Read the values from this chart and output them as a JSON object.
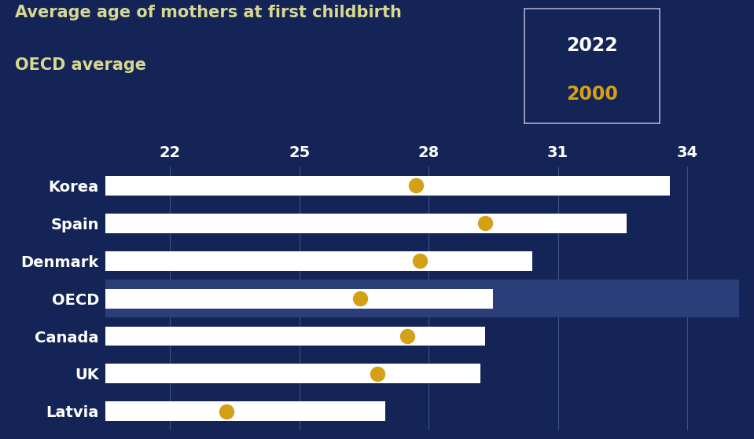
{
  "title_line1": "Average age of mothers at first childbirth",
  "title_line2": "OECD average",
  "bg_color": "#152457",
  "bar_color": "#ffffff",
  "dot_color": "#d4a017",
  "text_color": "#ffffff",
  "title_color": "#d8d890",
  "oecd_highlight_color": "#2a3f7a",
  "categories": [
    "Korea",
    "Spain",
    "Denmark",
    "OECD",
    "Canada",
    "UK",
    "Latvia"
  ],
  "values_2022": [
    33.6,
    32.6,
    30.4,
    29.5,
    29.3,
    29.2,
    27.0
  ],
  "values_2000": [
    27.7,
    29.3,
    27.8,
    26.4,
    27.5,
    26.8,
    23.3
  ],
  "xlim": [
    20.5,
    35.2
  ],
  "xticks": [
    22,
    25,
    28,
    31,
    34
  ],
  "tick_fontsize": 14,
  "label_fontsize": 14,
  "bar_height": 0.52,
  "legend_year2022": "2022",
  "legend_year2000": "2000",
  "legend_year2022_color": "#ffffff",
  "legend_year2000_color": "#d4a017"
}
